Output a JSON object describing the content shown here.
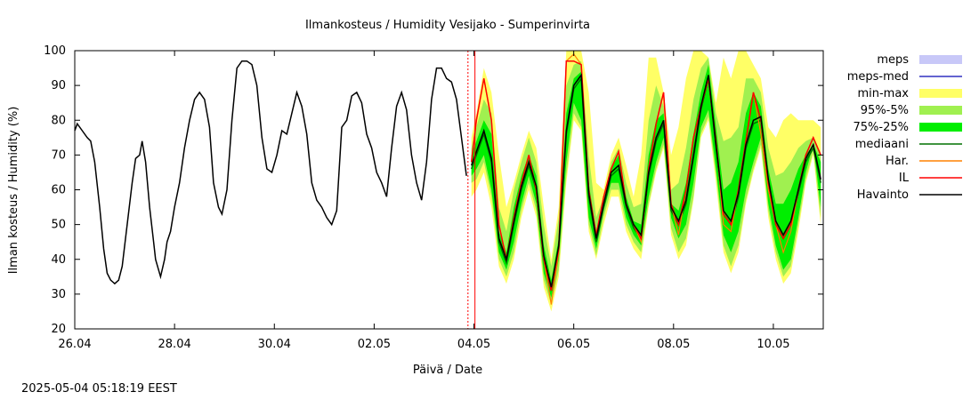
{
  "chart_data": {
    "type": "line",
    "title": "Ilmankosteus / Humidity  Vesijako - Sumperinvirta",
    "xlabel": "Päivä / Date",
    "ylabel": "Ilman kosteus / Humidity (%)",
    "ylim": [
      20,
      100
    ],
    "yticks": [
      "20",
      "30",
      "40",
      "50",
      "60",
      "70",
      "80",
      "90",
      "100"
    ],
    "xlim": [
      0,
      15
    ],
    "xticks": [
      {
        "x": 0,
        "label": "26.04"
      },
      {
        "x": 2,
        "label": "28.04"
      },
      {
        "x": 4,
        "label": "30.04"
      },
      {
        "x": 6,
        "label": "02.05"
      },
      {
        "x": 8,
        "label": "04.05"
      },
      {
        "x": 10,
        "label": "06.05"
      },
      {
        "x": 12,
        "label": "08.05"
      },
      {
        "x": 14,
        "label": "10.05"
      }
    ],
    "grid": false,
    "legend_position": "right",
    "forecast_start_x": 7.88,
    "now_x": 8.02,
    "legend": [
      {
        "label": "meps",
        "kind": "box",
        "color": "#c8c8f8"
      },
      {
        "label": "meps-med",
        "kind": "line",
        "color": "#3030c0"
      },
      {
        "label": "min-max",
        "kind": "box",
        "color": "#ffff66"
      },
      {
        "label": "95%-5%",
        "kind": "box",
        "color": "#a0f050"
      },
      {
        "label": "75%-25%",
        "kind": "box",
        "color": "#00ee00"
      },
      {
        "label": "mediaani",
        "kind": "line",
        "color": "#007000"
      },
      {
        "label": "Har.",
        "kind": "line",
        "color": "#ff8000"
      },
      {
        "label": "IL",
        "kind": "line",
        "color": "#ff0000"
      },
      {
        "label": "Havainto",
        "kind": "line",
        "color": "#000000"
      }
    ],
    "observation": {
      "x": [
        0.0,
        0.05,
        0.15,
        0.25,
        0.32,
        0.4,
        0.5,
        0.58,
        0.65,
        0.72,
        0.8,
        0.88,
        0.95,
        1.05,
        1.15,
        1.22,
        1.3,
        1.35,
        1.42,
        1.5,
        1.58,
        1.62,
        1.72,
        1.8,
        1.85,
        1.92,
        2.0,
        2.1,
        2.2,
        2.3,
        2.4,
        2.5,
        2.6,
        2.7,
        2.78,
        2.88,
        2.95,
        3.05,
        3.15,
        3.25,
        3.35,
        3.45,
        3.55,
        3.65,
        3.75,
        3.85,
        3.95,
        4.05,
        4.15,
        4.25,
        4.35,
        4.45,
        4.55,
        4.65,
        4.75,
        4.85,
        4.95,
        5.05,
        5.15,
        5.25,
        5.35,
        5.45,
        5.55,
        5.65,
        5.75,
        5.85,
        5.95,
        6.05,
        6.15,
        6.25,
        6.35,
        6.45,
        6.55,
        6.65,
        6.75,
        6.85,
        6.95,
        7.05,
        7.15,
        7.25,
        7.35,
        7.45,
        7.55,
        7.65,
        7.75,
        7.85
      ],
      "y": [
        77,
        79,
        77,
        75,
        74,
        68,
        55,
        43,
        36,
        34,
        33,
        34,
        38,
        50,
        62,
        69,
        70,
        74,
        68,
        55,
        45,
        40,
        35,
        40,
        45,
        48,
        55,
        62,
        72,
        80,
        86,
        88,
        86,
        78,
        62,
        55,
        53,
        60,
        80,
        95,
        97,
        97,
        96,
        90,
        75,
        66,
        65,
        70,
        77,
        76,
        82,
        88,
        84,
        76,
        62,
        57,
        55,
        52,
        50,
        54,
        78,
        80,
        87,
        88,
        85,
        76,
        72,
        65,
        62,
        58,
        72,
        84,
        88,
        83,
        70,
        62,
        57,
        68,
        86,
        95,
        95,
        92,
        91,
        86,
        75,
        64
      ]
    },
    "forecast_x": [
      7.95,
      8.05,
      8.2,
      8.35,
      8.5,
      8.65,
      8.8,
      8.95,
      9.1,
      9.25,
      9.4,
      9.55,
      9.7,
      9.85,
      10.0,
      10.15,
      10.3,
      10.45,
      10.6,
      10.75,
      10.9,
      11.05,
      11.2,
      11.35,
      11.5,
      11.65,
      11.8,
      11.95,
      12.1,
      12.25,
      12.4,
      12.55,
      12.7,
      12.85,
      13.0,
      13.15,
      13.3,
      13.45,
      13.6,
      13.75,
      13.9,
      14.05,
      14.2,
      14.35,
      14.5,
      14.65,
      14.8,
      14.95
    ],
    "min_max": {
      "lower": [
        58,
        60,
        65,
        55,
        38,
        33,
        40,
        52,
        60,
        52,
        32,
        25,
        35,
        62,
        80,
        77,
        48,
        40,
        50,
        58,
        58,
        48,
        43,
        40,
        55,
        65,
        72,
        47,
        40,
        44,
        57,
        75,
        80,
        62,
        42,
        36,
        42,
        56,
        65,
        72,
        52,
        40,
        33,
        36,
        48,
        62,
        70,
        50
      ],
      "upper": [
        75,
        82,
        95,
        88,
        70,
        55,
        62,
        70,
        77,
        72,
        55,
        40,
        55,
        100,
        100,
        100,
        88,
        62,
        60,
        70,
        75,
        67,
        58,
        70,
        98,
        98,
        88,
        70,
        78,
        92,
        100,
        100,
        98,
        85,
        98,
        92,
        100,
        100,
        96,
        92,
        78,
        75,
        80,
        82,
        80,
        80,
        80,
        78
      ]
    },
    "p95_p5": {
      "lower": [
        62,
        63,
        68,
        58,
        40,
        35,
        42,
        54,
        62,
        54,
        34,
        27,
        37,
        64,
        82,
        78,
        50,
        41,
        52,
        60,
        60,
        50,
        45,
        42,
        56,
        66,
        73,
        49,
        42,
        46,
        58,
        76,
        81,
        64,
        44,
        38,
        44,
        57,
        66,
        73,
        54,
        42,
        35,
        38,
        50,
        63,
        71,
        52
      ],
      "upper": [
        72,
        78,
        86,
        82,
        55,
        48,
        60,
        68,
        75,
        68,
        50,
        38,
        52,
        90,
        96,
        97,
        70,
        52,
        58,
        68,
        72,
        62,
        55,
        56,
        80,
        90,
        84,
        60,
        62,
        72,
        86,
        95,
        98,
        82,
        74,
        75,
        78,
        92,
        92,
        88,
        72,
        64,
        65,
        68,
        72,
        74,
        75,
        70
      ]
    },
    "p75_p25": {
      "lower": [
        64,
        66,
        70,
        60,
        42,
        37,
        45,
        56,
        64,
        56,
        36,
        29,
        40,
        68,
        85,
        80,
        52,
        43,
        54,
        62,
        62,
        52,
        47,
        44,
        58,
        68,
        75,
        52,
        46,
        50,
        62,
        78,
        83,
        66,
        47,
        42,
        48,
        60,
        68,
        75,
        56,
        44,
        37,
        40,
        52,
        65,
        73,
        55
      ],
      "upper": [
        70,
        74,
        80,
        76,
        48,
        42,
        55,
        64,
        70,
        64,
        44,
        34,
        46,
        82,
        92,
        94,
        62,
        48,
        56,
        66,
        70,
        58,
        51,
        50,
        70,
        80,
        82,
        56,
        54,
        62,
        76,
        88,
        96,
        78,
        60,
        62,
        68,
        82,
        88,
        84,
        66,
        56,
        56,
        60,
        66,
        70,
        73,
        68
      ]
    },
    "median": [
      66,
      70,
      76,
      68,
      45,
      39,
      50,
      60,
      67,
      60,
      40,
      31,
      43,
      76,
      89,
      92,
      58,
      45,
      55,
      64,
      66,
      55,
      49,
      46,
      64,
      74,
      79,
      54,
      50,
      56,
      69,
      83,
      92,
      72,
      53,
      50,
      58,
      72,
      79,
      80,
      62,
      50,
      46,
      50,
      59,
      68,
      72,
      62
    ],
    "har": [
      68,
      80,
      92,
      80,
      50,
      40,
      52,
      62,
      70,
      60,
      40,
      27,
      42,
      97,
      99,
      96,
      60,
      47,
      58,
      66,
      71,
      56,
      50,
      45,
      66,
      79,
      88,
      56,
      47,
      60,
      75,
      84,
      92,
      74,
      50,
      48,
      60,
      74,
      88,
      76,
      60,
      50,
      42,
      48,
      60,
      70,
      75,
      70
    ]
  },
  "footer": {
    "timestamp": "2025-05-04 05:18:19 EEST"
  }
}
